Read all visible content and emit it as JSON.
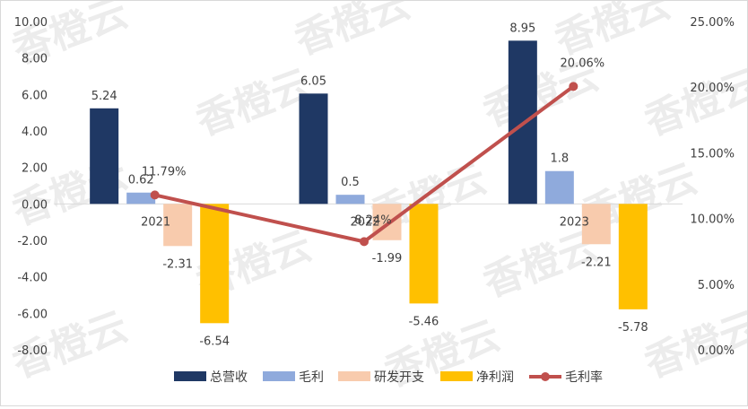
{
  "chart_data": {
    "type": "bar",
    "categories": [
      "2021",
      "2022",
      "2023"
    ],
    "series": [
      {
        "name": "总营收",
        "type": "bar",
        "axis": "left",
        "values": [
          5.24,
          6.05,
          8.95
        ],
        "labels": [
          "5.24",
          "6.05",
          "8.95"
        ],
        "color": "#1f3864"
      },
      {
        "name": "毛利",
        "type": "bar",
        "axis": "left",
        "values": [
          0.62,
          0.5,
          1.8
        ],
        "labels": [
          "0.62",
          "0.5",
          "1.8"
        ],
        "color": "#8faadc"
      },
      {
        "name": "研发开支",
        "type": "bar",
        "axis": "left",
        "values": [
          -2.31,
          -1.99,
          -2.21
        ],
        "labels": [
          "-2.31",
          "-1.99",
          "-2.21"
        ],
        "color": "#f8cbad"
      },
      {
        "name": "净利润",
        "type": "bar",
        "axis": "left",
        "values": [
          -6.54,
          -5.46,
          -5.78
        ],
        "labels": [
          "-6.54",
          "-5.46",
          "-5.78"
        ],
        "color": "#ffc000"
      },
      {
        "name": "毛利率",
        "type": "line",
        "axis": "right",
        "values": [
          11.79,
          8.24,
          20.06
        ],
        "labels": [
          "11.79%",
          "8.24%",
          "20.06%"
        ],
        "color": "#c0504d"
      }
    ],
    "left_axis": {
      "min": -8,
      "max": 10,
      "step": 2,
      "ticks": [
        "10.00",
        "8.00",
        "6.00",
        "4.00",
        "2.00",
        "0.00",
        "-2.00",
        "-4.00",
        "-6.00",
        "-8.00"
      ]
    },
    "right_axis": {
      "min": 0,
      "max": 25,
      "step": 5,
      "ticks": [
        "25.00%",
        "20.00%",
        "15.00%",
        "10.00%",
        "5.00%",
        "0.00%"
      ]
    },
    "grid": false,
    "legend_position": "bottom",
    "watermark": "香橙云"
  }
}
